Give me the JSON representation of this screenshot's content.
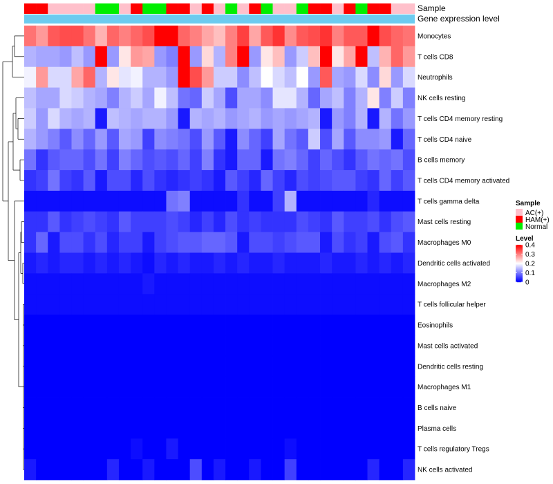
{
  "chart_data": {
    "type": "heatmap",
    "title": "",
    "annotation_tracks": [
      {
        "name": "Sample"
      },
      {
        "name": "Gene expression level"
      }
    ],
    "sample_groups": [
      "HAM(+)",
      "HAM(+)",
      "AC(+)",
      "AC(+)",
      "AC(+)",
      "AC(+)",
      "Normal",
      "Normal",
      "AC(+)",
      "HAM(+)",
      "Normal",
      "Normal",
      "HAM(+)",
      "HAM(+)",
      "AC(+)",
      "HAM(+)",
      "AC(+)",
      "Normal",
      "AC(+)",
      "HAM(+)",
      "Normal",
      "AC(+)",
      "AC(+)",
      "Normal",
      "HAM(+)",
      "HAM(+)",
      "AC(+)",
      "HAM(+)",
      "Normal",
      "HAM(+)",
      "HAM(+)",
      "AC(+)",
      "AC(+)"
    ],
    "rows": [
      "Monocytes",
      "T cells CD8",
      "Neutrophils",
      "NK cells resting",
      "T cells CD4 memory resting",
      "T cells CD4 naive",
      "B cells memory",
      "T cells CD4 memory activated",
      "T cells gamma delta",
      "Mast cells resting",
      "Macrophages M0",
      "Dendritic cells activated",
      "Macrophages M2",
      "T cells follicular helper",
      "Eosinophils",
      "Mast cells activated",
      "Dendritic cells resting",
      "Macrophages M1",
      "B cells naive",
      "Plasma cells",
      "T cells regulatory  Tregs",
      "NK cells activated"
    ],
    "values": [
      [
        0.31,
        0.28,
        0.33,
        0.34,
        0.34,
        0.31,
        0.26,
        0.32,
        0.3,
        0.32,
        0.34,
        0.4,
        0.4,
        0.32,
        0.3,
        0.27,
        0.25,
        0.3,
        0.35,
        0.27,
        0.33,
        0.36,
        0.29,
        0.33,
        0.34,
        0.36,
        0.3,
        0.33,
        0.33,
        0.4,
        0.34,
        0.32,
        0.31
      ],
      [
        0.14,
        0.13,
        0.13,
        0.12,
        0.15,
        0.12,
        0.4,
        0.12,
        0.22,
        0.28,
        0.27,
        0.12,
        0.1,
        0.4,
        0.12,
        0.23,
        0.14,
        0.3,
        0.4,
        0.12,
        0.22,
        0.25,
        0.12,
        0.16,
        0.25,
        0.4,
        0.22,
        0.27,
        0.4,
        0.15,
        0.26,
        0.32,
        0.28
      ],
      [
        0.19,
        0.28,
        0.17,
        0.17,
        0.27,
        0.32,
        0.14,
        0.22,
        0.18,
        0.19,
        0.14,
        0.14,
        0.12,
        0.4,
        0.34,
        0.28,
        0.16,
        0.16,
        0.11,
        0.15,
        0.2,
        0.17,
        0.15,
        0.2,
        0.12,
        0.33,
        0.13,
        0.12,
        0.17,
        0.11,
        0.23,
        0.12,
        0.17
      ],
      [
        0.15,
        0.13,
        0.13,
        0.17,
        0.16,
        0.14,
        0.13,
        0.1,
        0.14,
        0.16,
        0.13,
        0.19,
        0.15,
        0.09,
        0.08,
        0.16,
        0.13,
        0.06,
        0.13,
        0.13,
        0.11,
        0.18,
        0.18,
        0.14,
        0.08,
        0.13,
        0.15,
        0.1,
        0.14,
        0.22,
        0.1,
        0.16,
        0.1
      ],
      [
        0.16,
        0.12,
        0.17,
        0.14,
        0.13,
        0.14,
        0.02,
        0.15,
        0.14,
        0.13,
        0.14,
        0.14,
        0.12,
        0.02,
        0.14,
        0.13,
        0.14,
        0.12,
        0.13,
        0.14,
        0.12,
        0.13,
        0.12,
        0.13,
        0.14,
        0.02,
        0.12,
        0.1,
        0.14,
        0.02,
        0.14,
        0.09,
        0.12
      ],
      [
        0.14,
        0.12,
        0.1,
        0.07,
        0.11,
        0.08,
        0.12,
        0.07,
        0.13,
        0.12,
        0.05,
        0.11,
        0.1,
        0.09,
        0.06,
        0.12,
        0.07,
        0.02,
        0.11,
        0.08,
        0.05,
        0.13,
        0.09,
        0.07,
        0.16,
        0.06,
        0.13,
        0.07,
        0.11,
        0.11,
        0.12,
        0.02,
        0.08
      ],
      [
        0.09,
        0.04,
        0.07,
        0.08,
        0.08,
        0.06,
        0.09,
        0.05,
        0.1,
        0.08,
        0.06,
        0.07,
        0.06,
        0.08,
        0.05,
        0.1,
        0.04,
        0.02,
        0.08,
        0.08,
        0.02,
        0.09,
        0.1,
        0.08,
        0.05,
        0.08,
        0.06,
        0.04,
        0.07,
        0.09,
        0.08,
        0.09,
        0.06
      ],
      [
        0.04,
        0.05,
        0.09,
        0.05,
        0.04,
        0.07,
        0.02,
        0.06,
        0.06,
        0.03,
        0.06,
        0.04,
        0.03,
        0.04,
        0.05,
        0.04,
        0.02,
        0.07,
        0.05,
        0.03,
        0.08,
        0.05,
        0.03,
        0.06,
        0.05,
        0.06,
        0.07,
        0.07,
        0.05,
        0.04,
        0.08,
        0.05,
        0.07
      ],
      [
        0.01,
        0.01,
        0.01,
        0.01,
        0.01,
        0.01,
        0.01,
        0.01,
        0.01,
        0.01,
        0.01,
        0.01,
        0.09,
        0.1,
        0.01,
        0.01,
        0.01,
        0.01,
        0.04,
        0.01,
        0.01,
        0.05,
        0.14,
        0.01,
        0.01,
        0.01,
        0.01,
        0.01,
        0.01,
        0.03,
        0.01,
        0.01,
        0.01
      ],
      [
        0.04,
        0.04,
        0.07,
        0.04,
        0.05,
        0.06,
        0.05,
        0.04,
        0.07,
        0.05,
        0.05,
        0.05,
        0.06,
        0.05,
        0.03,
        0.05,
        0.03,
        0.06,
        0.04,
        0.05,
        0.04,
        0.04,
        0.04,
        0.06,
        0.05,
        0.04,
        0.07,
        0.05,
        0.05,
        0.06,
        0.04,
        0.06,
        0.07
      ],
      [
        0.04,
        0.08,
        0.02,
        0.06,
        0.06,
        0.04,
        0.06,
        0.03,
        0.05,
        0.05,
        0.02,
        0.05,
        0.06,
        0.07,
        0.07,
        0.08,
        0.08,
        0.07,
        0.02,
        0.06,
        0.06,
        0.05,
        0.06,
        0.07,
        0.07,
        0.02,
        0.06,
        0.04,
        0.05,
        0.02,
        0.06,
        0.07,
        0.04
      ],
      [
        0.02,
        0.03,
        0.02,
        0.03,
        0.03,
        0.02,
        0.03,
        0.02,
        0.03,
        0.02,
        0.01,
        0.03,
        0.02,
        0.03,
        0.02,
        0.02,
        0.03,
        0.02,
        0.03,
        0.02,
        0.02,
        0.03,
        0.02,
        0.02,
        0.02,
        0.03,
        0.02,
        0.02,
        0.03,
        0.02,
        0.03,
        0.02,
        0.03
      ],
      [
        0.01,
        0.01,
        0.01,
        0.01,
        0.01,
        0.01,
        0.01,
        0.01,
        0.01,
        0.01,
        0.02,
        0.01,
        0.01,
        0.01,
        0.01,
        0.01,
        0.01,
        0.01,
        0.01,
        0.01,
        0.01,
        0.01,
        0.01,
        0.01,
        0.01,
        0.01,
        0.01,
        0.01,
        0.01,
        0.01,
        0.01,
        0.01,
        0.01
      ],
      [
        0.01,
        0.01,
        0.01,
        0.01,
        0.01,
        0.01,
        0.01,
        0.01,
        0.01,
        0.01,
        0.01,
        0.01,
        0.01,
        0.01,
        0.01,
        0.01,
        0.01,
        0.01,
        0.01,
        0.01,
        0.01,
        0.01,
        0.01,
        0.01,
        0.01,
        0.01,
        0.01,
        0.01,
        0.01,
        0.01,
        0.01,
        0.01,
        0.01
      ],
      [
        0.0,
        0.0,
        0.0,
        0.0,
        0.0,
        0.0,
        0.0,
        0.0,
        0.0,
        0.0,
        0.0,
        0.0,
        0.0,
        0.0,
        0.0,
        0.0,
        0.0,
        0.0,
        0.0,
        0.0,
        0.0,
        0.0,
        0.0,
        0.0,
        0.0,
        0.0,
        0.0,
        0.0,
        0.0,
        0.0,
        0.0,
        0.0,
        0.0
      ],
      [
        0.0,
        0.0,
        0.0,
        0.0,
        0.0,
        0.0,
        0.0,
        0.0,
        0.0,
        0.0,
        0.0,
        0.0,
        0.0,
        0.0,
        0.0,
        0.0,
        0.0,
        0.0,
        0.0,
        0.0,
        0.0,
        0.0,
        0.0,
        0.0,
        0.0,
        0.0,
        0.0,
        0.0,
        0.0,
        0.0,
        0.0,
        0.0,
        0.0
      ],
      [
        0.0,
        0.0,
        0.0,
        0.0,
        0.0,
        0.0,
        0.0,
        0.0,
        0.0,
        0.0,
        0.0,
        0.0,
        0.0,
        0.0,
        0.0,
        0.0,
        0.0,
        0.0,
        0.0,
        0.0,
        0.0,
        0.0,
        0.0,
        0.0,
        0.0,
        0.0,
        0.0,
        0.0,
        0.0,
        0.0,
        0.0,
        0.0,
        0.0
      ],
      [
        0.0,
        0.0,
        0.0,
        0.0,
        0.0,
        0.0,
        0.0,
        0.0,
        0.0,
        0.0,
        0.0,
        0.0,
        0.0,
        0.0,
        0.0,
        0.0,
        0.0,
        0.0,
        0.0,
        0.0,
        0.0,
        0.0,
        0.0,
        0.0,
        0.0,
        0.0,
        0.0,
        0.0,
        0.0,
        0.0,
        0.0,
        0.0,
        0.0
      ],
      [
        0.0,
        0.0,
        0.0,
        0.0,
        0.0,
        0.0,
        0.0,
        0.0,
        0.0,
        0.0,
        0.0,
        0.0,
        0.0,
        0.0,
        0.0,
        0.0,
        0.0,
        0.0,
        0.0,
        0.0,
        0.0,
        0.0,
        0.0,
        0.0,
        0.0,
        0.0,
        0.0,
        0.0,
        0.0,
        0.0,
        0.0,
        0.0,
        0.0
      ],
      [
        0.0,
        0.0,
        0.0,
        0.0,
        0.0,
        0.0,
        0.0,
        0.0,
        0.0,
        0.0,
        0.0,
        0.0,
        0.0,
        0.0,
        0.0,
        0.0,
        0.0,
        0.0,
        0.0,
        0.0,
        0.0,
        0.0,
        0.0,
        0.0,
        0.0,
        0.0,
        0.0,
        0.0,
        0.0,
        0.0,
        0.0,
        0.0,
        0.0
      ],
      [
        0.0,
        0.0,
        0.0,
        0.0,
        0.0,
        0.0,
        0.0,
        0.0,
        0.0,
        0.01,
        0.0,
        0.0,
        0.02,
        0.0,
        0.0,
        0.0,
        0.0,
        0.0,
        0.0,
        0.0,
        0.0,
        0.0,
        0.01,
        0.0,
        0.0,
        0.0,
        0.0,
        0.0,
        0.0,
        0.0,
        0.0,
        0.0,
        0.0
      ],
      [
        0.02,
        0.0,
        0.0,
        0.0,
        0.0,
        0.0,
        0.0,
        0.03,
        0.0,
        0.0,
        0.02,
        0.0,
        0.0,
        0.0,
        0.06,
        0.0,
        0.02,
        0.0,
        0.0,
        0.02,
        0.0,
        0.0,
        0.05,
        0.0,
        0.0,
        0.0,
        0.0,
        0.0,
        0.0,
        0.03,
        0.0,
        0.0,
        0.03
      ]
    ],
    "legend": {
      "sample_title": "Sample",
      "sample_levels": [
        {
          "label": "AC(+)",
          "color": "#FFC0CB"
        },
        {
          "label": "HAM(+)",
          "color": "#FF0000"
        },
        {
          "label": "Normal",
          "color": "#00EE00"
        }
      ],
      "level_title": "Level",
      "level_ticks": [
        "0.4",
        "0.3",
        "0.2",
        "0.1",
        "0"
      ],
      "level_range": [
        0,
        0.4
      ]
    },
    "colors": {
      "low": "#0000FF",
      "mid": "#FFFFFF",
      "high": "#FF0000",
      "gene_expression_track": "#6CCBEF"
    }
  }
}
